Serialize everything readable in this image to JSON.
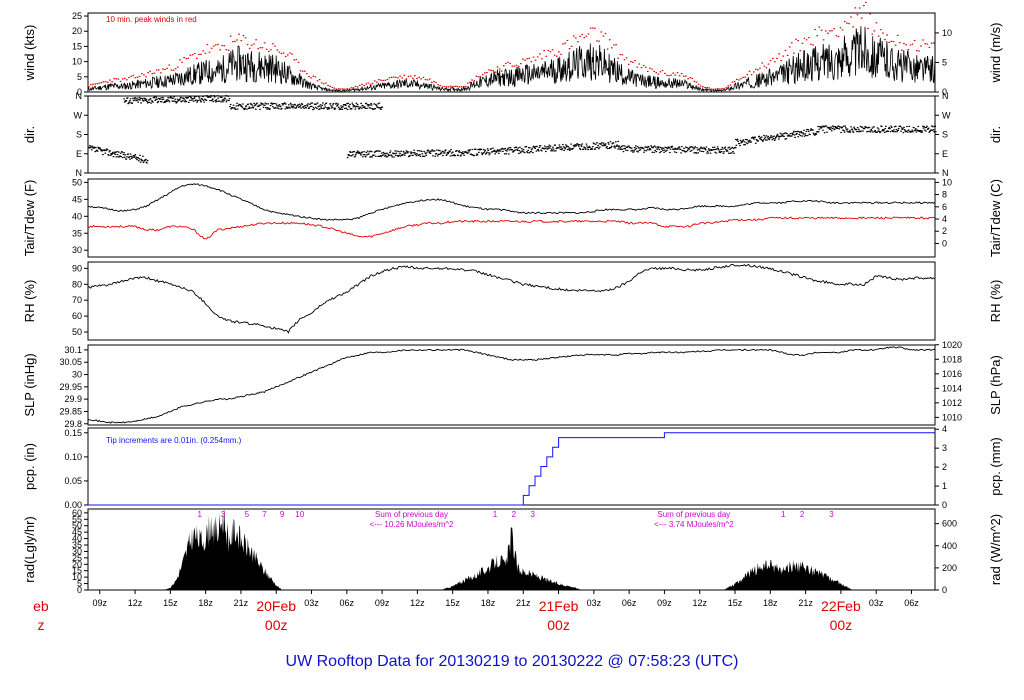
{
  "footer": "UW Rooftop Data for 20130219  to  20130222 @ 07:58:23  (UTC)",
  "colors": {
    "peak": "#e00000",
    "dew": "#e00000",
    "precip": "#1010ff",
    "note": "#cc00cc",
    "footer": "#1010c8",
    "text": "#000000"
  },
  "chart_data": [
    {
      "id": "wind",
      "type": "line",
      "ylabel_left": "wind (kts)",
      "ylabel_right": "wind (m/s)",
      "ylim": [
        0,
        26
      ],
      "yticks": [
        0,
        5,
        10,
        15,
        20,
        25
      ],
      "yticks_right": [
        "0",
        "5",
        "10"
      ],
      "yticks_right_values": [
        0,
        9.72,
        19.44
      ],
      "annotation": "10 min. peak winds in red",
      "series": [
        {
          "x": [
            0,
            1,
            2,
            3,
            4,
            5,
            6,
            7,
            8,
            9,
            10,
            11,
            12,
            13,
            14,
            15,
            16,
            17,
            18,
            19,
            20,
            21,
            22,
            23,
            24,
            25,
            26,
            27,
            28,
            29,
            30,
            31,
            32,
            33,
            34,
            35,
            36,
            37,
            38,
            39,
            40,
            41,
            42,
            43,
            44,
            45,
            46,
            47,
            48,
            49,
            50,
            51,
            52,
            53,
            54,
            55,
            56,
            57,
            58,
            59,
            60,
            61,
            62,
            63,
            64,
            65,
            66,
            67,
            68,
            69,
            70,
            71
          ],
          "values": [
            1,
            1.5,
            2,
            2,
            2.5,
            3,
            3.5,
            4,
            5,
            6,
            7,
            7,
            9,
            10,
            9,
            9,
            8,
            6,
            4,
            2,
            1,
            0.5,
            0.5,
            1,
            1.5,
            2,
            2.5,
            3,
            2.5,
            2,
            1,
            1,
            1,
            3,
            4,
            5,
            5,
            6,
            6,
            7,
            8,
            9,
            10,
            11,
            9,
            7,
            5,
            4,
            3.5,
            3,
            3,
            2.5,
            1,
            0.5,
            0.5,
            2,
            3,
            4,
            5,
            6,
            8,
            9,
            10,
            11,
            12,
            13,
            15,
            12,
            11,
            9,
            9,
            8
          ]
        },
        {
          "values": [
            2,
            3,
            4,
            4,
            5,
            6,
            7,
            8,
            10,
            12,
            14,
            14,
            16,
            17,
            16,
            15,
            14,
            12,
            8,
            5,
            3,
            1,
            1,
            2,
            3,
            4,
            5,
            5,
            5,
            4,
            2,
            2,
            2,
            5,
            7,
            8,
            9,
            10,
            11,
            13,
            14,
            16,
            18,
            19,
            17,
            13,
            10,
            8,
            7,
            6,
            6,
            5,
            2,
            1,
            1,
            4,
            6,
            8,
            10,
            12,
            15,
            17,
            19,
            20,
            22,
            24,
            26,
            20,
            18,
            16,
            16,
            15
          ]
        }
      ]
    },
    {
      "id": "dir",
      "type": "scatter",
      "ylabel_left": "dir.",
      "ylabel_right": "dir.",
      "yticks": [
        "N",
        "E",
        "S",
        "W",
        "N"
      ],
      "segments": [
        {
          "x": [
            0,
            5
          ],
          "y": [
            1.3,
            0.7
          ]
        },
        {
          "x": [
            3,
            12
          ],
          "y": [
            3.8,
            3.9
          ]
        },
        {
          "x": [
            12,
            25
          ],
          "y": [
            3.5,
            3.5
          ]
        },
        {
          "x": [
            22,
            33
          ],
          "y": [
            1,
            1.1
          ]
        },
        {
          "x": [
            33,
            45
          ],
          "y": [
            1.1,
            1.5
          ]
        },
        {
          "x": [
            45,
            55
          ],
          "y": [
            1.3,
            1.2
          ]
        },
        {
          "x": [
            55,
            62
          ],
          "y": [
            1.6,
            2.2
          ]
        },
        {
          "x": [
            62,
            72
          ],
          "y": [
            2.3,
            2.3
          ]
        }
      ]
    },
    {
      "id": "temp",
      "type": "line",
      "ylabel_left": "Tair/Tdew (F)",
      "ylabel_right": "Tair/Tdew (C)",
      "ylim": [
        28,
        51
      ],
      "yticks": [
        30,
        35,
        40,
        45,
        50
      ],
      "yticks_right": [
        "0",
        "2",
        "4",
        "6",
        "8",
        "10"
      ],
      "yticks_right_values": [
        32,
        35.6,
        39.2,
        42.8,
        46.4,
        50
      ],
      "series": [
        {
          "name": "",
          "values": [
            43,
            42.5,
            42,
            41.5,
            42,
            43,
            45,
            47,
            49,
            49.5,
            49,
            48,
            46.5,
            45,
            43.5,
            42,
            41,
            40.5,
            40,
            39.5,
            39,
            39,
            39,
            39.5,
            41,
            42,
            43,
            44,
            44.5,
            45,
            45,
            44,
            43,
            42.5,
            42,
            42,
            41.5,
            41,
            41,
            41,
            41,
            41,
            41,
            41.5,
            42,
            42,
            42,
            42,
            42.5,
            42,
            42,
            42.5,
            43,
            43,
            43,
            43,
            43.5,
            44,
            44,
            44,
            44.5,
            44.5,
            44.5,
            44,
            44,
            44,
            44,
            44,
            44,
            44,
            44,
            44
          ]
        },
        {
          "name": "",
          "values": [
            37,
            37,
            37,
            37,
            37,
            36,
            36,
            37,
            37,
            36,
            33,
            36,
            36.5,
            37,
            37.5,
            38,
            38,
            38,
            38,
            37.5,
            37,
            36,
            35,
            34,
            34,
            35,
            36,
            37,
            37.5,
            38,
            38,
            38.5,
            38.5,
            38.5,
            38.5,
            38.5,
            38.5,
            38.5,
            38.5,
            38.5,
            38.5,
            38.5,
            38.5,
            38.5,
            38.5,
            38.5,
            38,
            38,
            38,
            37,
            37,
            37,
            38,
            38,
            38.5,
            39,
            39,
            39,
            39.5,
            39.5,
            39.5,
            39.5,
            39.5,
            39.5,
            39.5,
            39.5,
            39.5,
            39.5,
            39.5,
            39.5,
            39.5,
            39.5
          ]
        }
      ]
    },
    {
      "id": "rh",
      "type": "line",
      "ylabel_left": "RH (%)",
      "ylabel_right": "RH (%)",
      "ylim": [
        45,
        94
      ],
      "yticks": [
        50,
        60,
        70,
        80,
        90
      ],
      "series": [
        {
          "values": [
            78,
            79,
            80,
            82,
            84,
            84,
            82,
            80,
            78,
            75,
            68,
            60,
            57,
            56,
            55,
            54,
            52,
            50,
            58,
            62,
            68,
            72,
            75,
            80,
            85,
            88,
            90,
            91,
            90,
            90,
            90,
            90,
            89,
            88,
            86,
            84,
            82,
            80,
            79,
            78,
            77,
            76,
            76,
            76,
            76,
            78,
            82,
            88,
            90,
            90,
            90,
            89,
            89,
            90,
            91,
            92,
            92,
            91,
            90,
            88,
            86,
            84,
            82,
            81,
            80,
            80,
            80,
            85,
            84,
            83,
            84,
            84
          ]
        }
      ]
    },
    {
      "id": "slp",
      "type": "line",
      "ylabel_left": "SLP (inHg)",
      "ylabel_right": "SLP (hPa)",
      "ylim": [
        29.795,
        30.12
      ],
      "yticks": [
        29.8,
        29.85,
        29.9,
        29.95,
        30.0,
        30.05,
        30.1
      ],
      "yticks_right": [
        "1010",
        "1012",
        "1014",
        "1016",
        "1018",
        "1020"
      ],
      "yticks_right_values": [
        29.826,
        29.885,
        29.944,
        30.003,
        30.062,
        30.121
      ],
      "series": [
        {
          "values": [
            29.82,
            29.81,
            29.805,
            29.805,
            29.81,
            29.82,
            29.83,
            29.85,
            29.87,
            29.88,
            29.89,
            29.9,
            29.9,
            29.91,
            29.92,
            29.93,
            29.95,
            29.97,
            29.99,
            30.01,
            30.03,
            30.05,
            30.07,
            30.08,
            30.09,
            30.09,
            30.095,
            30.1,
            30.1,
            30.1,
            30.1,
            30.1,
            30.1,
            30.09,
            30.08,
            30.07,
            30.06,
            30.06,
            30.06,
            30.065,
            30.07,
            30.075,
            30.08,
            30.08,
            30.08,
            30.08,
            30.085,
            30.085,
            30.09,
            30.09,
            30.09,
            30.09,
            30.095,
            30.095,
            30.1,
            30.1,
            30.1,
            30.1,
            30.1,
            30.09,
            30.08,
            30.08,
            30.09,
            30.09,
            30.09,
            30.1,
            30.1,
            30.1,
            30.11,
            30.11,
            30.1,
            30.1
          ]
        }
      ]
    },
    {
      "id": "pcp",
      "type": "line",
      "ylabel_left": "pcp. (in)",
      "ylabel_right": "pcp. (mm)",
      "ylim": [
        0,
        0.16
      ],
      "yticks": [
        0,
        0.05,
        0.1,
        0.15
      ],
      "yticks_labels": [
        "0.00",
        "0.05",
        "0.10",
        "0.15"
      ],
      "yticks_right": [
        "0",
        "1",
        "2",
        "3",
        "4"
      ],
      "yticks_right_values": [
        0,
        0.03937,
        0.07874,
        0.11811,
        0.15748
      ],
      "annotation": "Tip increments are 0.01in. (0.254mm.)",
      "series": [
        {
          "x": [
            0,
            36.5,
            37,
            37.5,
            38,
            38.5,
            39,
            39.5,
            40,
            41,
            42,
            43,
            44,
            45,
            46,
            47,
            48,
            49,
            50,
            51,
            52,
            53,
            54,
            55,
            56,
            57,
            58,
            59,
            60,
            61,
            62,
            63,
            64,
            65,
            66,
            67,
            68,
            69,
            70,
            71,
            72
          ],
          "values": [
            0,
            0,
            0.02,
            0.04,
            0.06,
            0.08,
            0.1,
            0.12,
            0.14,
            0.14,
            0.14,
            0.14,
            0.14,
            0.14,
            0.14,
            0.14,
            0.14,
            0.15,
            0.15,
            0.15,
            0.15,
            0.15,
            0.15,
            0.15,
            0.15,
            0.15,
            0.15,
            0.15,
            0.15,
            0.15,
            0.15,
            0.15,
            0.15,
            0.15,
            0.15,
            0.15,
            0.15,
            0.15,
            0.15,
            0.15,
            0.15
          ]
        }
      ]
    },
    {
      "id": "rad",
      "type": "area",
      "ylabel_left": "rad(Lgly/hr)",
      "ylabel_right": "rad (W/m^2)",
      "ylim": [
        0,
        63
      ],
      "yticks": [
        0,
        5,
        10,
        15,
        20,
        25,
        30,
        35,
        40,
        45,
        50,
        55,
        60
      ],
      "yticks_right": [
        "0",
        "200",
        "400",
        "600"
      ],
      "yticks_right_values": [
        0,
        17.2,
        34.4,
        51.6
      ],
      "x_labels": [
        "09z",
        "12z",
        "15z",
        "18z",
        "21z",
        "20Feb",
        "03z",
        "06z",
        "09z",
        "12z",
        "15z",
        "18z",
        "21z",
        "21Feb",
        "03z",
        "06z",
        "09z",
        "12z",
        "15z",
        "18z",
        "21z",
        "22Feb",
        "03z",
        "06z"
      ],
      "day_labels": [
        "eb",
        "20Feb",
        "21Feb",
        "22Feb"
      ],
      "day_sublabels": [
        "z",
        "00z",
        "00z",
        "00z"
      ],
      "hour_marks_1": [
        "1",
        "3",
        "5",
        "7",
        "9",
        "10"
      ],
      "hour_marks_2": [
        "1",
        "2",
        "3"
      ],
      "hour_marks_3": [
        "1",
        "2",
        "3"
      ],
      "sum_notes": [
        {
          "line1": "Sum of previous day",
          "line2": "<--- 10.26 MJoules/m^2"
        },
        {
          "line1": "Sum of previous day",
          "line2": "<--- 3.74 MJoules/m^2"
        }
      ],
      "series": [
        {
          "x": [
            6.5,
            7,
            7.5,
            8,
            8.5,
            9,
            9.5,
            10,
            10.5,
            11,
            11.5,
            12,
            12.5,
            13,
            13.5,
            14,
            14.5,
            15,
            15.5,
            16,
            16.5
          ],
          "values": [
            0,
            2,
            8,
            20,
            35,
            45,
            40,
            42,
            55,
            45,
            60,
            40,
            50,
            40,
            35,
            30,
            22,
            15,
            10,
            4,
            0
          ]
        },
        {
          "x": [
            30,
            31,
            32,
            33,
            34,
            35,
            35.5,
            36,
            36.5,
            37,
            38,
            39,
            40,
            41,
            42
          ],
          "values": [
            0,
            3,
            8,
            12,
            18,
            25,
            20,
            45,
            18,
            15,
            12,
            8,
            5,
            3,
            0
          ]
        },
        {
          "x": [
            54,
            55,
            56,
            57,
            58,
            59,
            60,
            61,
            62,
            63,
            64,
            65
          ],
          "values": [
            0,
            5,
            12,
            18,
            20,
            16,
            20,
            18,
            14,
            10,
            5,
            0
          ]
        }
      ]
    }
  ]
}
